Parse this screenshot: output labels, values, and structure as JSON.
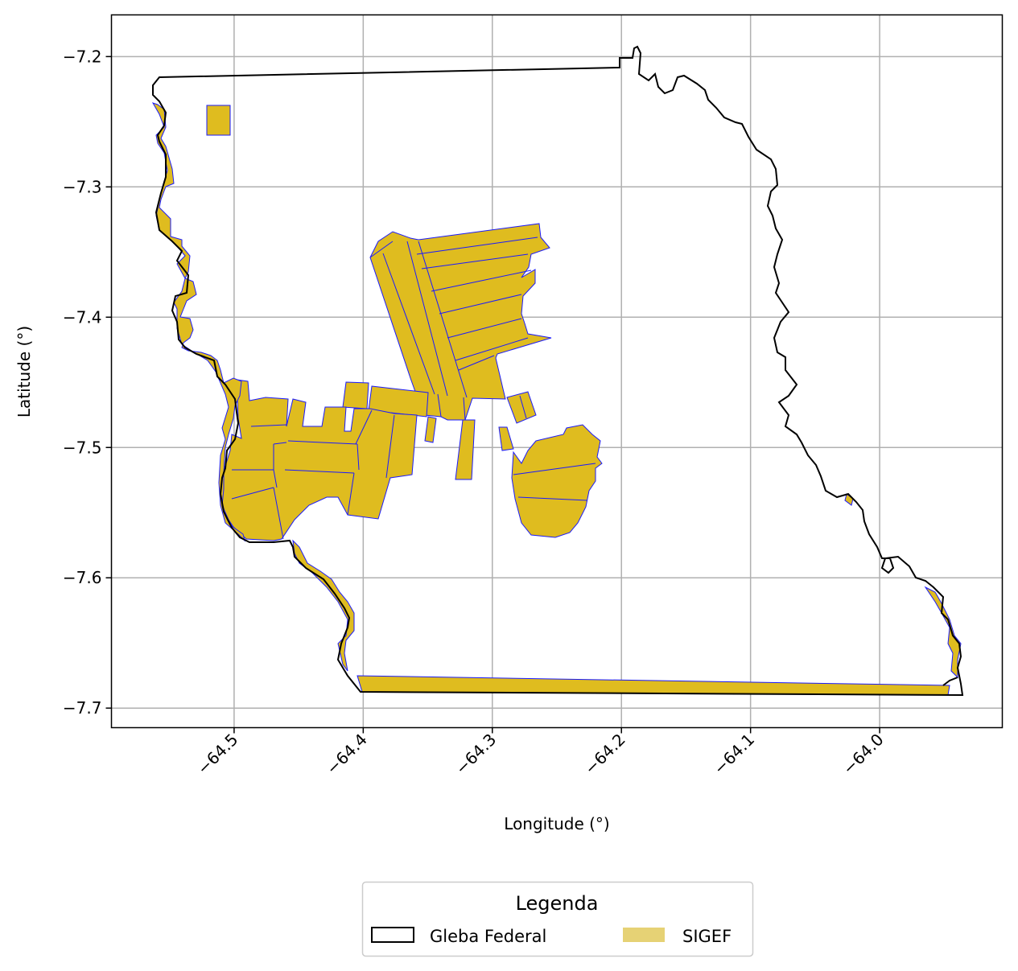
{
  "chart_data": {
    "type": "map",
    "xlabel": "Longitude (°)",
    "ylabel": "Latitude (°)",
    "xlim": [
      -64.595,
      -63.905
    ],
    "ylim": [
      -7.715,
      -7.168
    ],
    "grid": true,
    "x_ticks": [
      {
        "value": -64.5,
        "label": "−64.5"
      },
      {
        "value": -64.4,
        "label": "−64.4"
      },
      {
        "value": -64.3,
        "label": "−64.3"
      },
      {
        "value": -64.2,
        "label": "−64.2"
      },
      {
        "value": -64.1,
        "label": "−64.1"
      },
      {
        "value": -64.0,
        "label": "−64.0"
      }
    ],
    "y_ticks": [
      {
        "value": -7.2,
        "label": "−7.2"
      },
      {
        "value": -7.3,
        "label": "−7.3"
      },
      {
        "value": -7.4,
        "label": "−7.4"
      },
      {
        "value": -7.5,
        "label": "−7.5"
      },
      {
        "value": -7.6,
        "label": "−7.6"
      },
      {
        "value": -7.7,
        "label": "−7.7"
      }
    ],
    "legend": {
      "title": "Legenda",
      "placement": "bottom-center, outside",
      "entries": [
        {
          "label": "Gleba Federal",
          "style": "outline",
          "color": "#000000"
        },
        {
          "label": "SIGEF",
          "style": "fill",
          "color": "#e6d275"
        }
      ]
    },
    "colors": {
      "sigef_fill": "#dfbc1f",
      "sigef_edge": "#1a1aff",
      "gleba_edge": "#000000",
      "grid": "#b0b0b0"
    },
    "layers": [
      {
        "name": "Gleba Federal",
        "style": "outline",
        "polygons": [
          [
            [
              -64.556,
              -7.216
            ],
            [
              -64.2,
              -7.208
            ],
            [
              -64.2,
              -7.203
            ],
            [
              -64.195,
              -7.195
            ],
            [
              -64.192,
              -7.196
            ],
            [
              -64.19,
              -7.21
            ],
            [
              -64.182,
              -7.218
            ],
            [
              -64.178,
              -7.212
            ],
            [
              -64.171,
              -7.223
            ],
            [
              -64.163,
              -7.228
            ],
            [
              -64.155,
              -7.218
            ],
            [
              -64.148,
              -7.213
            ],
            [
              -64.137,
              -7.225
            ],
            [
              -64.126,
              -7.237
            ],
            [
              -64.11,
              -7.245
            ],
            [
              -64.1,
              -7.255
            ],
            [
              -64.093,
              -7.272
            ],
            [
              -64.083,
              -7.282
            ],
            [
              -64.078,
              -7.292
            ],
            [
              -64.081,
              -7.31
            ],
            [
              -64.076,
              -7.325
            ],
            [
              -64.078,
              -7.34
            ],
            [
              -64.074,
              -7.355
            ],
            [
              -64.077,
              -7.37
            ],
            [
              -64.071,
              -7.39
            ],
            [
              -64.076,
              -7.41
            ],
            [
              -64.069,
              -7.43
            ],
            [
              -64.064,
              -7.445
            ],
            [
              -64.063,
              -7.455
            ],
            [
              -64.066,
              -7.47
            ],
            [
              -64.061,
              -7.488
            ],
            [
              -64.058,
              -7.505
            ],
            [
              -64.052,
              -7.515
            ],
            [
              -64.045,
              -7.53
            ],
            [
              -64.035,
              -7.54
            ],
            [
              -64.025,
              -7.548
            ],
            [
              -64.017,
              -7.56
            ],
            [
              -64.01,
              -7.576
            ],
            [
              -64.001,
              -7.588
            ],
            [
              -63.998,
              -7.6
            ],
            [
              -63.99,
              -7.6
            ],
            [
              -63.978,
              -7.607
            ],
            [
              -63.968,
              -7.613
            ],
            [
              -63.962,
              -7.632
            ],
            [
              -63.957,
              -7.648
            ],
            [
              -63.955,
              -7.664
            ],
            [
              -63.958,
              -7.676
            ],
            [
              -63.963,
              -7.689
            ],
            [
              -64.4,
              -7.686
            ],
            [
              -64.413,
              -7.665
            ],
            [
              -64.416,
              -7.645
            ],
            [
              -64.42,
              -7.625
            ],
            [
              -64.432,
              -7.605
            ],
            [
              -64.445,
              -7.595
            ],
            [
              -64.458,
              -7.582
            ],
            [
              -64.47,
              -7.572
            ],
            [
              -64.485,
              -7.573
            ],
            [
              -64.5,
              -7.57
            ],
            [
              -64.51,
              -7.565
            ],
            [
              -64.513,
              -7.54
            ],
            [
              -64.51,
              -7.505
            ],
            [
              -64.51,
              -7.47
            ],
            [
              -64.515,
              -7.45
            ],
            [
              -64.53,
              -7.438
            ],
            [
              -64.54,
              -7.43
            ],
            [
              -64.543,
              -7.41
            ],
            [
              -64.542,
              -7.39
            ],
            [
              -64.54,
              -7.37
            ],
            [
              -64.543,
              -7.35
            ],
            [
              -64.555,
              -7.338
            ],
            [
              -64.562,
              -7.32
            ],
            [
              -64.565,
              -7.3
            ],
            [
              -64.562,
              -7.28
            ],
            [
              -64.57,
              -7.265
            ],
            [
              -64.568,
              -7.245
            ],
            [
              -64.575,
              -7.23
            ],
            [
              -64.572,
              -7.22
            ],
            [
              -64.556,
              -7.216
            ]
          ]
        ]
      },
      {
        "name": "SIGEF",
        "style": "fill",
        "polygons": [
          [
            [
              -64.521,
              -7.238
            ],
            [
              -64.503,
              -7.238
            ],
            [
              -64.503,
              -7.26
            ],
            [
              -64.521,
              -7.26
            ]
          ],
          [
            [
              -64.357,
              -7.335
            ],
            [
              -64.38,
              -7.336
            ],
            [
              -64.393,
              -7.342
            ],
            [
              -64.368,
              -7.346
            ],
            [
              -64.34,
              -7.46
            ],
            [
              -64.33,
              -7.46
            ],
            [
              -64.357,
              -7.335
            ]
          ],
          [
            [
              -64.393,
              -7.342
            ],
            [
              -64.38,
              -7.336
            ],
            [
              -64.357,
              -7.335
            ],
            [
              -64.368,
              -7.346
            ]
          ],
          [
            [
              -64.305,
              -7.335
            ],
            [
              -64.225,
              -7.345
            ],
            [
              -64.26,
              -7.335
            ],
            [
              -64.305,
              -7.335
            ]
          ],
          [
            [
              -64.4,
              -7.345
            ],
            [
              -64.393,
              -7.342
            ],
            [
              -64.398,
              -7.335
            ],
            [
              -64.402,
              -7.337
            ]
          ],
          [
            [
              -64.397,
              -7.341
            ],
            [
              -64.383,
              -7.335
            ],
            [
              -64.37,
              -7.335
            ],
            [
              -64.37,
              -7.341
            ]
          ],
          [
            [
              -64.398,
              -7.34
            ],
            [
              -64.375,
              -7.335
            ],
            [
              -64.358,
              -7.335
            ],
            [
              -64.36,
              -7.34
            ]
          ],
          [
            [
              -64.3955,
              -7.3445
            ],
            [
              -64.364,
              -7.346
            ],
            [
              -64.36,
              -7.335
            ],
            [
              -64.393,
              -7.335
            ]
          ],
          [
            [
              -64.3955,
              -7.3445
            ],
            [
              -64.393,
              -7.335
            ],
            [
              -64.383,
              -7.33
            ],
            [
              -64.36,
              -7.335
            ]
          ],
          [
            [
              -64.3955,
              -7.3445
            ],
            [
              -64.38,
              -7.33
            ],
            [
              -64.37,
              -7.33
            ],
            [
              -64.364,
              -7.346
            ]
          ]
        ],
        "parcels": [
          [
            [
              -64.52,
              -7.238
            ],
            [
              -64.503,
              -7.238
            ],
            [
              -64.503,
              -7.26
            ],
            [
              -64.52,
              -7.26
            ]
          ],
          [
            [
              -64.375,
              -7.33
            ],
            [
              -64.358,
              -7.333
            ],
            [
              -64.352,
              -7.345
            ],
            [
              -64.348,
              -7.34
            ],
            [
              -64.33,
              -7.46
            ],
            [
              -64.345,
              -7.46
            ]
          ],
          [
            [
              -64.358,
              -7.333
            ],
            [
              -64.353,
              -7.338
            ],
            [
              -64.363,
              -7.335
            ],
            [
              -64.375,
              -7.33
            ]
          ],
          [
            [
              -64.384,
              -7.33
            ],
            [
              -64.372,
              -7.334
            ],
            [
              -64.345,
              -7.46
            ],
            [
              -64.36,
              -7.46
            ]
          ],
          [
            [
              -64.357,
              -7.333
            ],
            [
              -64.353,
              -7.341
            ],
            [
              -64.345,
              -7.34
            ],
            [
              -64.33,
              -7.46
            ],
            [
              -64.322,
              -7.46
            ]
          ]
        ]
      }
    ]
  }
}
